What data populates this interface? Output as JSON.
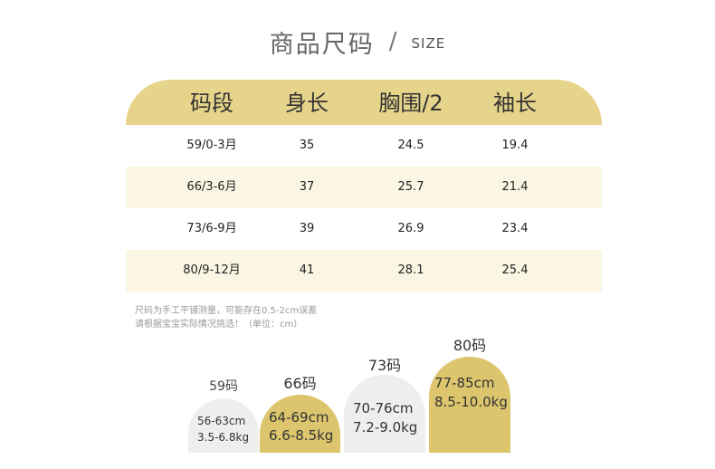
{
  "title": {
    "cn": "商品尺码",
    "slash": "/",
    "en": "SIZE"
  },
  "table": {
    "headers": [
      "码段",
      "身长",
      "胸围/2",
      "袖长"
    ],
    "rows": [
      [
        "59/0-3月",
        "35",
        "24.5",
        "19.4"
      ],
      [
        "66/3-6月",
        "37",
        "25.7",
        "21.4"
      ],
      [
        "73/6-9月",
        "39",
        "26.9",
        "23.4"
      ],
      [
        "80/9-12月",
        "41",
        "28.1",
        "25.4"
      ]
    ]
  },
  "note": {
    "line1": "尺码为手工平铺测量，可能存在0.5-2cm误差",
    "line2": "请根据宝宝实际情况挑选！（单位：cm）"
  },
  "sizes": [
    {
      "label": "59码",
      "height": "56-63cm",
      "weight": "3.5-6.8kg",
      "fill": "#eeeeee"
    },
    {
      "label": "66码",
      "height": "64-69cm",
      "weight": "6.6-8.5kg",
      "fill": "#dcc56d"
    },
    {
      "label": "73码",
      "height": "70-76cm",
      "weight": "7.2-9.0kg",
      "fill": "#eeeeee"
    },
    {
      "label": "80码",
      "height": "77-85cm",
      "weight": "8.5-10.0kg",
      "fill": "#dcc56d"
    }
  ],
  "colors": {
    "header_band": "#e6d48b",
    "alt_row": "#fbf6e4",
    "gold": "#dcc56d",
    "grey": "#eeeeee"
  }
}
